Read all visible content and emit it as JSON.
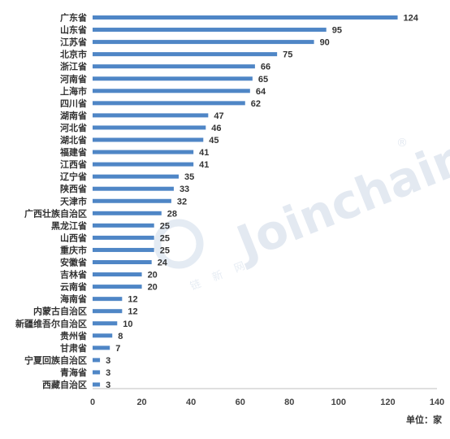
{
  "chart_data": {
    "type": "bar",
    "orientation": "horizontal",
    "categories": [
      "广东省",
      "山东省",
      "江苏省",
      "北京市",
      "浙江省",
      "河南省",
      "上海市",
      "四川省",
      "湖南省",
      "河北省",
      "湖北省",
      "福建省",
      "江西省",
      "辽宁省",
      "陕西省",
      "天津市",
      "广西壮族自治区",
      "黑龙江省",
      "山西省",
      "重庆市",
      "安徽省",
      "吉林省",
      "云南省",
      "海南省",
      "内蒙古自治区",
      "新疆维吾尔自治区",
      "贵州省",
      "甘肃省",
      "宁夏回族自治区",
      "青海省",
      "西藏自治区"
    ],
    "values": [
      124,
      95,
      90,
      75,
      66,
      65,
      64,
      62,
      47,
      46,
      45,
      41,
      41,
      35,
      33,
      32,
      28,
      25,
      25,
      25,
      24,
      20,
      20,
      12,
      12,
      10,
      8,
      7,
      3,
      3,
      3
    ],
    "xlim": [
      0,
      140
    ],
    "xticks": [
      0,
      20,
      40,
      60,
      80,
      100,
      120,
      140
    ],
    "grid": false,
    "legend": "none",
    "unit_label": "单位：家",
    "colors": {
      "bar": "#4f86c6",
      "text": "#333333",
      "axis": "#bfbfbf"
    }
  },
  "watermark": {
    "brand": "Joinchain",
    "registered": "®",
    "sub_text": "链 新 网",
    "colors": {
      "main": "#dce6f0",
      "accent": "#e9eff6"
    }
  }
}
